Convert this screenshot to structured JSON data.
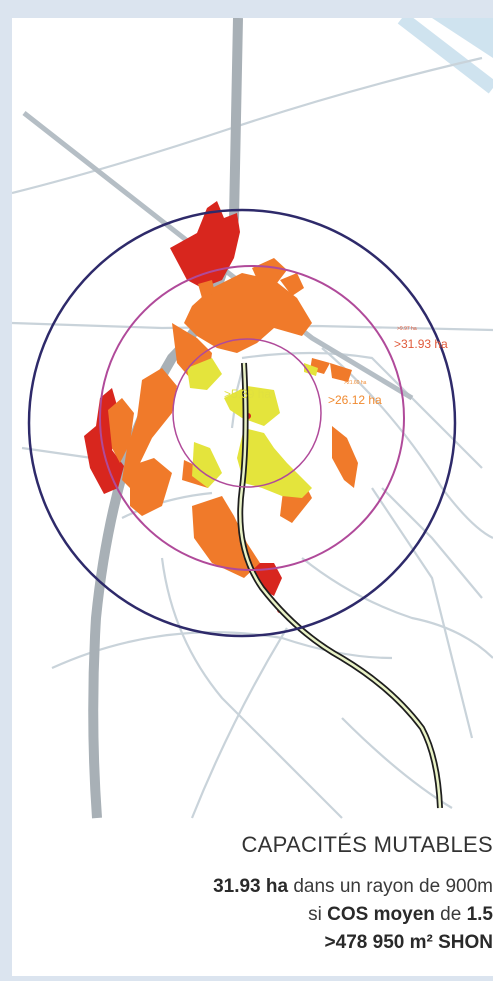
{
  "map": {
    "rings": [
      {
        "area_label": ">31.93 ha",
        "small_label": ">9.97 ha"
      },
      {
        "area_label": ">26.12 ha",
        "small_label": ">21.60 ha"
      },
      {
        "area_label": ">5.39 ha"
      }
    ],
    "colors": {
      "outer_ring": "#2e2a6a",
      "middle_ring": "#b04a9a",
      "inner_ring": "#b04a9a",
      "parcel_red": "#d8261e",
      "parcel_orange": "#f07a2a",
      "parcel_yellow": "#e4e43c",
      "road": "#c9d3da",
      "railway": "#a8b0b6",
      "tram_line": "#1e1e1e"
    }
  },
  "caption": {
    "title": "CAPACITÉS MUTABLES",
    "line1_value": "31.93 ha",
    "line1_text": " dans un rayon de 900m",
    "line2_prefix": "si ",
    "line2_cos": "COS moyen",
    "line2_mid": " de ",
    "line2_value": "1.5",
    "line3": ">478 950 m² SHON"
  }
}
